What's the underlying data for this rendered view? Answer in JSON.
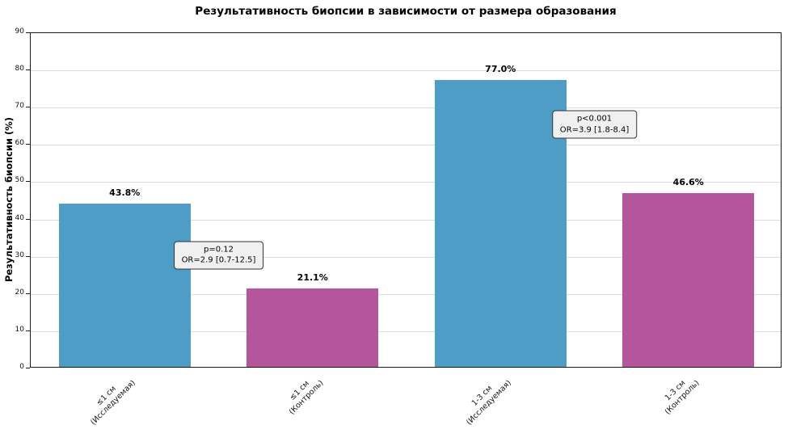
{
  "chart_data": {
    "type": "bar",
    "title": "Результативность биопсии в зависимости от размера образования",
    "ylabel": "Результативность биопсии (%)",
    "xlabel": "",
    "ylim": [
      0,
      90
    ],
    "yticks": [
      0,
      10,
      20,
      30,
      40,
      50,
      60,
      70,
      80,
      90
    ],
    "grid": true,
    "legend": false,
    "categories": [
      "≤1 см\n(Исследуемая)",
      "≤1 см\n(Контроль)",
      "1-3 см\n(Исследуемая)",
      "1-3 см\n(Контроль)"
    ],
    "values": [
      43.8,
      21.1,
      77.0,
      46.6
    ],
    "bar_labels": [
      "43.8%",
      "21.1%",
      "77.0%",
      "46.6%"
    ],
    "bar_colors": [
      "#4d9dc7",
      "#b5569d",
      "#4d9dc7",
      "#b5569d"
    ],
    "annotations": [
      {
        "lines": [
          "p=0.12",
          "OR=2.9 [0.7-12.5]"
        ],
        "x_frac": 0.25,
        "y_value": 30
      },
      {
        "lines": [
          "p<0.001",
          "OR=3.9 [1.8-8.4]"
        ],
        "x_frac": 0.75,
        "y_value": 65
      }
    ]
  },
  "style_colors": {
    "grid": "#dcdcdc",
    "annotation_bg": "#f0f0f0",
    "axis": "#1a1a1a"
  }
}
